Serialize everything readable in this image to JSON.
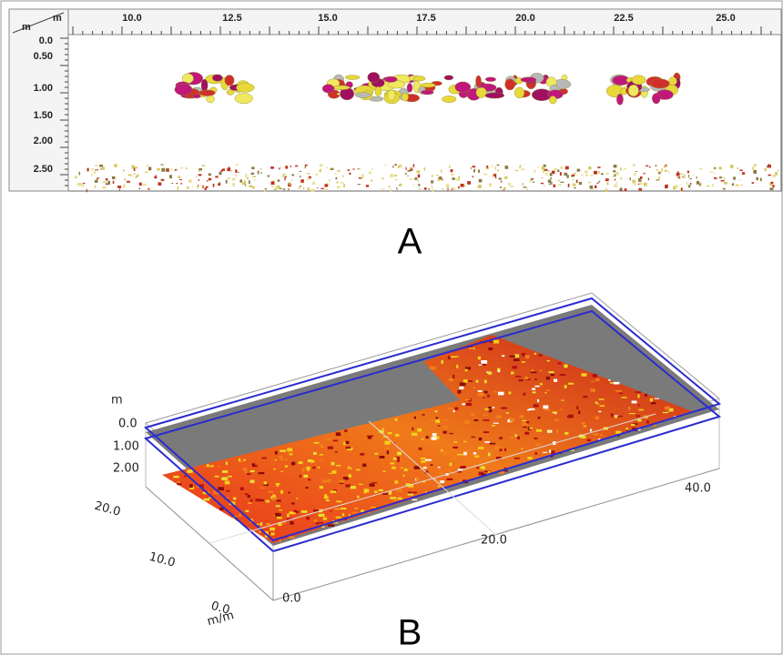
{
  "panel_a": {
    "label": "A",
    "corner_x_unit": "m",
    "corner_y_unit": "m",
    "xticks": [
      "10.0",
      "12.5",
      "15.0",
      "17.5",
      "20.0",
      "22.5",
      "25.0"
    ],
    "yticks": [
      "0.0",
      "0.50",
      "1.00",
      "1.50",
      "2.00",
      "2.50"
    ]
  },
  "panel_b": {
    "label": "B",
    "depth_unit": "m",
    "depth_ticks": [
      "0.0",
      "1.00",
      "2.00"
    ],
    "y_ticks": [
      "20.0",
      "10.0",
      "0.0"
    ],
    "x_ticks": [
      "0.0",
      "20.0",
      "40.0"
    ],
    "axis_unit": "m/m"
  }
}
